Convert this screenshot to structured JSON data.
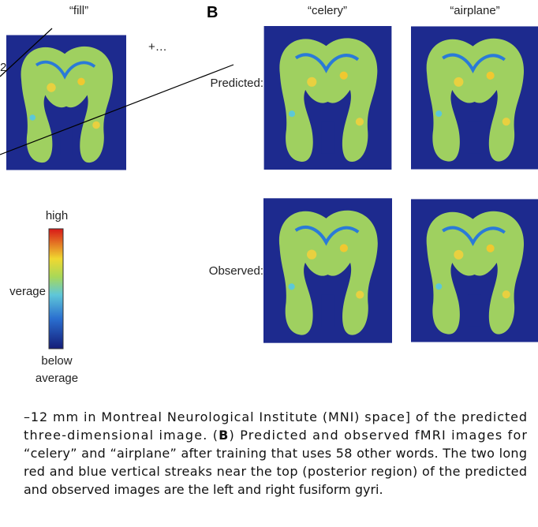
{
  "panel_a": {
    "title": "“fill”",
    "left_label": "2",
    "right_label": "+…",
    "colorbar": {
      "top": "high",
      "middle": "verage",
      "bottom_1": "below",
      "bottom_2": "average"
    }
  },
  "panel_b": {
    "label": "B",
    "columns": [
      "“celery”",
      "“airplane”"
    ],
    "rows": [
      "Predicted:",
      "Observed:"
    ]
  },
  "caption": {
    "lines": [
      [
        "–12 mm in Montreal Neurological Institute (MNI) space] of the predicted"
      ],
      [
        "three-dimensional image. (",
        "B",
        ") Predicted and observed fMRI images for"
      ],
      [
        "“celery” and “airplane” after training that uses 58 other words. The two long"
      ],
      [
        "red and blue vertical streaks near the top (posterior region) of the predicted"
      ],
      [
        "and observed images are the left and right fusiform gyri."
      ]
    ]
  }
}
